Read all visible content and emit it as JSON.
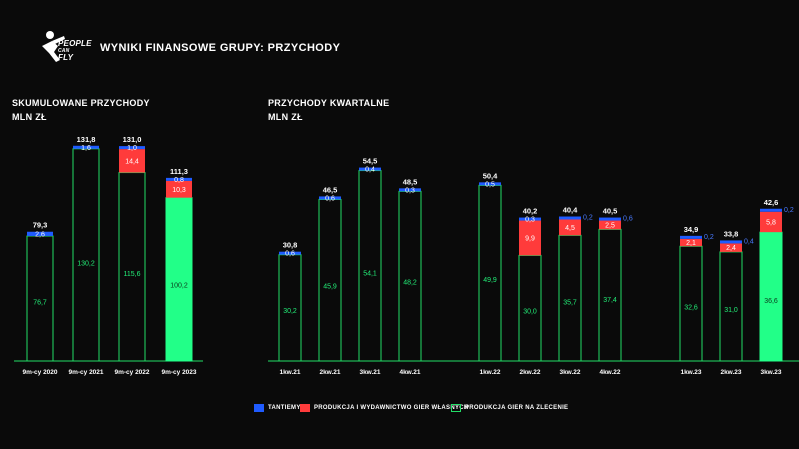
{
  "header": {
    "logo_text_top": "PEOPLE",
    "logo_text_mid": "CAN",
    "logo_text_bot": "FLY",
    "title": "WYNIKI FINANSOWE GRUPY: PRZYCHODY"
  },
  "colors": {
    "background": "#0a0a0a",
    "tantiemy": "#1f5bff",
    "produkcja_wlasna": "#ff3b3b",
    "zlecenie_outline": "#22dd66",
    "highlight_fill": "#22ff88",
    "label_tantiemy": "#4a7bff",
    "label_green": "#22ee77"
  },
  "legend": {
    "tantiemy": "TANTIEMY",
    "wlasne": "PRODUKCJA I WYDAWNICTWO GIER WŁASNYCH",
    "zlecenie": "PRODUKCJA GIER NA ZLECENIE"
  },
  "chart_data": [
    {
      "type": "bar",
      "stacked": true,
      "title": "SKUMULOWANE PRZYCHODY",
      "subtitle": "MLN ZŁ",
      "categories": [
        "9m-cy 2020",
        "9m-cy 2021",
        "9m-cy 2022",
        "9m-cy 2023"
      ],
      "series": [
        {
          "key": "zlecenie",
          "values": [
            76.7,
            130.2,
            115.6,
            100.2
          ],
          "labels": [
            "76,7",
            "130,2",
            "115,6",
            "100,2"
          ]
        },
        {
          "key": "wlasne",
          "values": [
            0,
            0,
            14.4,
            10.3
          ],
          "labels": [
            "",
            "",
            "14,4",
            "10,3"
          ]
        },
        {
          "key": "tantiemy",
          "values": [
            2.6,
            1.6,
            1.0,
            0.8
          ],
          "labels": [
            "2,6",
            "1,6",
            "1,0",
            "0,8"
          ]
        }
      ],
      "totals": [
        "79,3",
        "131,8",
        "131,0",
        "111,3"
      ],
      "total_values": [
        79.3,
        131.8,
        131.0,
        111.3
      ],
      "highlight_index": 3
    },
    {
      "type": "bar",
      "stacked": true,
      "title": "PRZYCHODY KWARTALNE",
      "subtitle": "MLN ZŁ",
      "categories": [
        "1kw.21",
        "2kw.21",
        "3kw.21",
        "4kw.21",
        "1kw.22",
        "2kw.22",
        "3kw.22",
        "4kw.22",
        "1kw.23",
        "2kw.23",
        "3kw.23"
      ],
      "series": [
        {
          "key": "zlecenie",
          "values": [
            30.2,
            45.9,
            54.1,
            48.2,
            49.9,
            30.0,
            35.7,
            37.4,
            32.6,
            31.0,
            36.6
          ],
          "labels": [
            "30,2",
            "45,9",
            "54,1",
            "48,2",
            "49,9",
            "30,0",
            "35,7",
            "37,4",
            "32,6",
            "31,0",
            "36,6"
          ]
        },
        {
          "key": "wlasne",
          "values": [
            0,
            0,
            0,
            0,
            0,
            9.9,
            4.5,
            2.5,
            2.1,
            2.4,
            5.8
          ],
          "labels": [
            "",
            "",
            "",
            "",
            "",
            "9,9",
            "4,5",
            "2,5",
            "2,1",
            "2,4",
            "5,8"
          ]
        },
        {
          "key": "tantiemy",
          "values": [
            0.6,
            0.6,
            0.4,
            0.3,
            0.5,
            0.3,
            0.2,
            0.6,
            0.2,
            0.4,
            0.2
          ],
          "labels": [
            "0,6",
            "0,6",
            "0,4",
            "0,3",
            "0,5",
            "0,3",
            "0,2",
            "0,6",
            "0,2",
            "0,4",
            "0,2"
          ]
        }
      ],
      "totals": [
        "30,8",
        "46,5",
        "54,5",
        "48,5",
        "50,4",
        "40,2",
        "40,4",
        "40,5",
        "34,9",
        "33,8",
        "42,6"
      ],
      "total_values": [
        30.8,
        46.5,
        54.5,
        48.5,
        50.4,
        40.2,
        40.4,
        40.5,
        34.9,
        33.8,
        42.6
      ],
      "highlight_index": 10
    }
  ]
}
